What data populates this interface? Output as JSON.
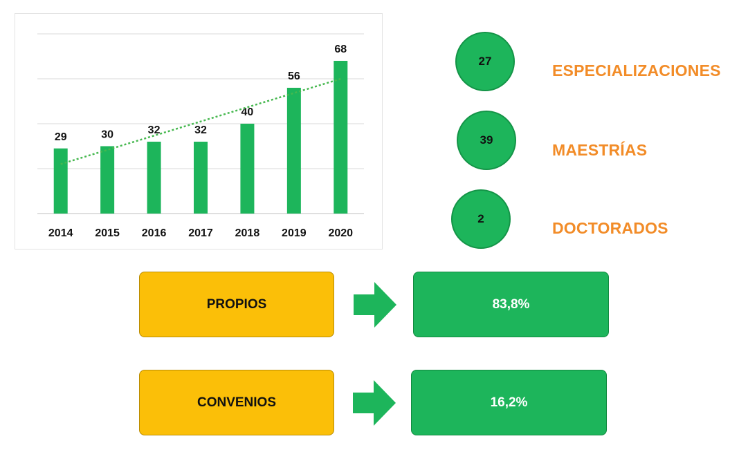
{
  "chart_data": {
    "type": "bar",
    "categories": [
      "2014",
      "2015",
      "2016",
      "2017",
      "2018",
      "2019",
      "2020"
    ],
    "values": [
      29,
      30,
      32,
      32,
      40,
      56,
      68
    ],
    "ylim": [
      0,
      80
    ],
    "grid": true,
    "trendline": true,
    "bar_color": "#1db55b",
    "trendline_color": "#46b84f"
  },
  "stats": [
    {
      "value": "27",
      "label": "ESPECIALIZACIONES"
    },
    {
      "value": "39",
      "label": "MAESTRÍAS"
    },
    {
      "value": "2",
      "label": "DOCTORADOS"
    }
  ],
  "funding": [
    {
      "label": "PROPIOS",
      "percent": "83,8%"
    },
    {
      "label": "CONVENIOS",
      "percent": "16,2%"
    }
  ],
  "colors": {
    "green": "#1db55b",
    "orange": "#f28c28",
    "yellow": "#fbbf08"
  },
  "icons": {
    "arrow": "right-arrow-icon"
  }
}
